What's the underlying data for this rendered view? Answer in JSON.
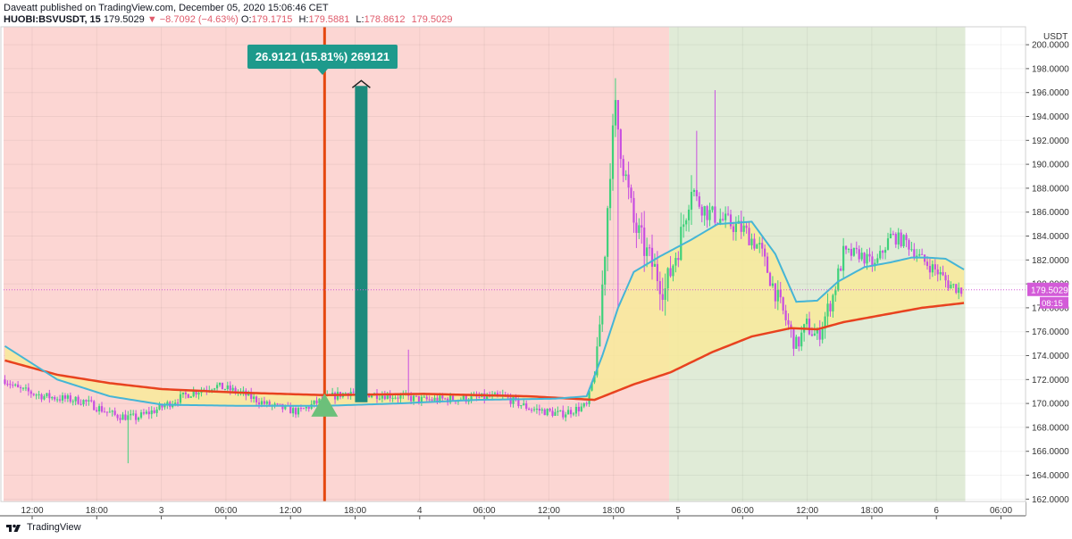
{
  "header": {
    "line1": "Daveatt published on TradingView.com, December 05, 2020 15:06:46 CET",
    "symbol": "HUOBI:BSVUSDT, 15",
    "last": "179.5029",
    "change": "▼ −8.7092 (−4.63%)",
    "o_label": "O:",
    "o_value": "179.1715",
    "h_label": "H:",
    "h_value": "179.5881",
    "l_label": "L:",
    "l_value": "178.8612",
    "c_value": "179.5029"
  },
  "footer": {
    "brand": "TradingView"
  },
  "colors": {
    "red_zone": "#fcd6d3",
    "green_zone": "#e0ebd7",
    "up_candle": "#3ed17a",
    "down_candle": "#c84ee0",
    "fast_ma": "#45b5d6",
    "slow_ma": "#e8421f",
    "fill": "#f8ea9a",
    "vline": "#e5480f",
    "arrow": "#1c8a7c",
    "label_bg": "#1e9a8c",
    "buy_marker": "#6cc07a",
    "price_tag": "#d35bd8"
  },
  "chart_data": {
    "type": "candlestick",
    "y_unit": "USDT",
    "ylim": [
      161.8,
      201.5
    ],
    "y_ticks": [
      "162.0000",
      "164.0000",
      "166.0000",
      "168.0000",
      "170.0000",
      "172.0000",
      "174.0000",
      "176.0000",
      "178.0000",
      "180.0000",
      "182.0000",
      "184.0000",
      "186.0000",
      "188.0000",
      "190.0000",
      "192.0000",
      "194.0000",
      "196.0000",
      "198.0000",
      "200.0000"
    ],
    "x_ticks": [
      "12:00",
      "18:00",
      "3",
      "06:00",
      "12:00",
      "18:00",
      "4",
      "06:00",
      "12:00",
      "18:00",
      "5",
      "06:00",
      "12:00",
      "18:00",
      "6",
      "06:00"
    ],
    "last_price": "179.5029",
    "countdown": "08:15",
    "measure_label": "26.9121 (15.81%) 269121",
    "measure_from": 170.1,
    "measure_to": 197.0,
    "zones": [
      {
        "name": "red",
        "from_bar": 0,
        "to_bar": 254
      },
      {
        "name": "green",
        "from_bar": 254,
        "to_bar": 367
      }
    ],
    "signal_bar": 122,
    "ohlc_keypoints": [
      [
        0,
        172.0
      ],
      [
        5,
        171.2
      ],
      [
        15,
        170.6
      ],
      [
        30,
        170.2
      ],
      [
        42,
        169.0
      ],
      [
        50,
        168.8
      ],
      [
        58,
        169.5
      ],
      [
        70,
        170.8
      ],
      [
        80,
        171.5
      ],
      [
        90,
        170.9
      ],
      [
        100,
        169.9
      ],
      [
        112,
        169.3
      ],
      [
        122,
        170.4
      ],
      [
        132,
        171.0
      ],
      [
        138,
        170.8
      ],
      [
        146,
        170.7
      ],
      [
        160,
        170.3
      ],
      [
        175,
        170.4
      ],
      [
        190,
        170.6
      ],
      [
        200,
        169.6
      ],
      [
        212,
        169.1
      ],
      [
        222,
        169.8
      ],
      [
        226,
        173.5
      ],
      [
        229,
        183.0
      ],
      [
        231,
        190.0
      ],
      [
        233,
        194.5
      ],
      [
        236,
        190.0
      ],
      [
        240,
        185.0
      ],
      [
        246,
        182.0
      ],
      [
        252,
        179.5
      ],
      [
        258,
        184.0
      ],
      [
        262,
        188.5
      ],
      [
        264,
        187.0
      ],
      [
        268,
        186.0
      ],
      [
        274,
        185.3
      ],
      [
        282,
        184.5
      ],
      [
        288,
        183.0
      ],
      [
        292,
        180.5
      ],
      [
        298,
        177.0
      ],
      [
        302,
        174.8
      ],
      [
        306,
        176.5
      ],
      [
        310,
        175.5
      ],
      [
        316,
        179.0
      ],
      [
        320,
        182.5
      ],
      [
        326,
        182.5
      ],
      [
        332,
        181.5
      ],
      [
        338,
        184.0
      ],
      [
        344,
        183.5
      ],
      [
        350,
        182.0
      ],
      [
        356,
        181.0
      ],
      [
        360,
        180.0
      ],
      [
        365,
        179.5
      ]
    ],
    "fast_ma_points": [
      [
        0,
        174.8
      ],
      [
        20,
        172.0
      ],
      [
        40,
        170.6
      ],
      [
        60,
        169.9
      ],
      [
        90,
        169.8
      ],
      [
        122,
        169.8
      ],
      [
        150,
        170.0
      ],
      [
        180,
        170.3
      ],
      [
        210,
        170.4
      ],
      [
        222,
        170.6
      ],
      [
        228,
        174.0
      ],
      [
        234,
        178.0
      ],
      [
        240,
        181.0
      ],
      [
        250,
        182.3
      ],
      [
        262,
        183.7
      ],
      [
        272,
        185.0
      ],
      [
        285,
        185.2
      ],
      [
        294,
        182.5
      ],
      [
        302,
        178.5
      ],
      [
        310,
        178.6
      ],
      [
        318,
        180.2
      ],
      [
        328,
        181.4
      ],
      [
        338,
        181.8
      ],
      [
        346,
        182.2
      ],
      [
        352,
        182.2
      ],
      [
        359,
        182.1
      ],
      [
        366,
        181.2
      ]
    ],
    "slow_ma_points": [
      [
        0,
        173.6
      ],
      [
        20,
        172.4
      ],
      [
        40,
        171.7
      ],
      [
        60,
        171.2
      ],
      [
        90,
        170.9
      ],
      [
        122,
        170.7
      ],
      [
        160,
        170.8
      ],
      [
        200,
        170.6
      ],
      [
        225,
        170.3
      ],
      [
        240,
        171.6
      ],
      [
        254,
        172.6
      ],
      [
        270,
        174.3
      ],
      [
        285,
        175.6
      ],
      [
        300,
        176.3
      ],
      [
        310,
        176.2
      ],
      [
        320,
        176.8
      ],
      [
        335,
        177.4
      ],
      [
        350,
        178.0
      ],
      [
        366,
        178.4
      ]
    ],
    "ma_periods": []
  }
}
